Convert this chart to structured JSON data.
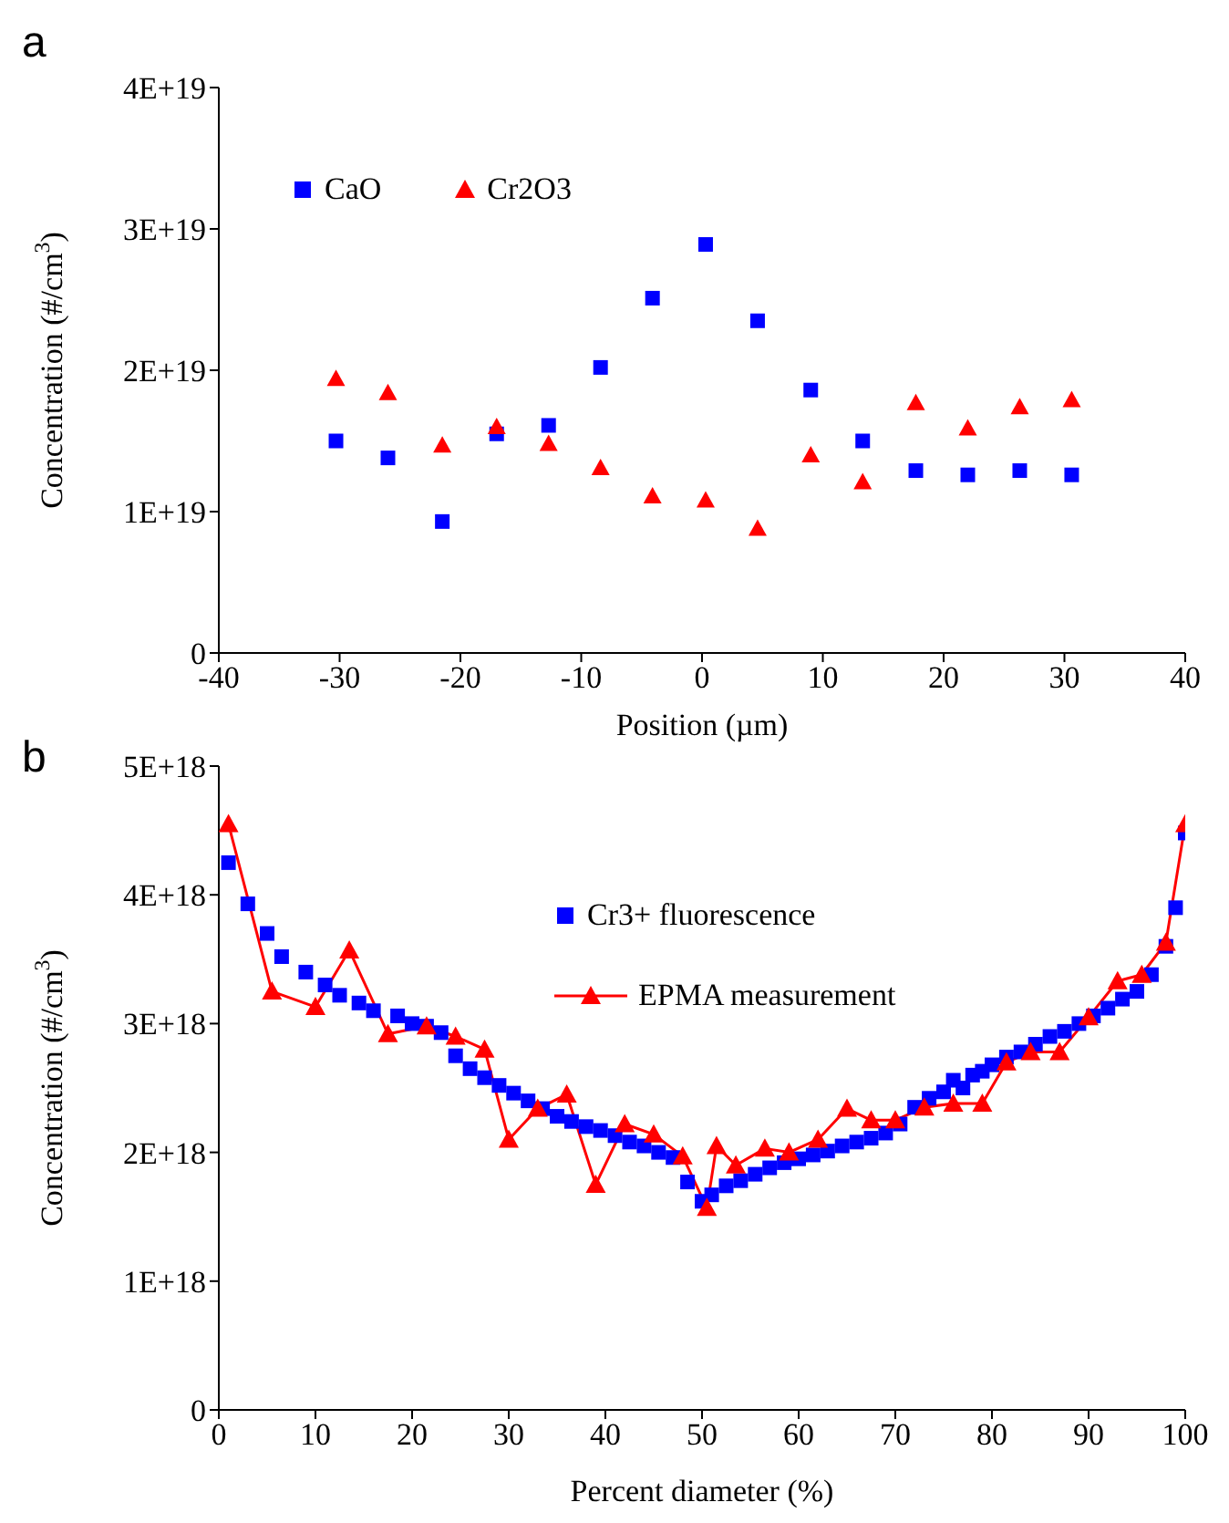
{
  "chart_data": [
    {
      "type": "scatter",
      "annotations": [
        "a"
      ],
      "xlabel": "Position (µm)",
      "ylabel": "Concentration (#/cm$^{3}$)",
      "xlim": [
        -40,
        40
      ],
      "xticks": [
        -40,
        -30,
        -20,
        -10,
        0,
        10,
        20,
        30,
        40
      ],
      "ylim": [
        0,
        4e+19
      ],
      "yticks": [
        0,
        {
          "value": 1e+19,
          "label": "1E+19"
        },
        {
          "value": 2e+19,
          "label": "2E+19"
        },
        {
          "value": 3e+19,
          "label": "3E+19"
        },
        {
          "value": 4e+19,
          "label": "4E+19"
        }
      ],
      "grid": false,
      "legend": "top left",
      "x": [
        -30.3,
        -26,
        -21.5,
        -17,
        -12.7,
        -8.4,
        -4.1,
        0.3,
        4.6,
        9,
        13.3,
        17.7,
        22,
        26.3,
        30.6
      ],
      "series": [
        {
          "name": "CaO",
          "color": "#0000ff",
          "marker": "square",
          "values": [
            1.5e+19,
            1.38e+19,
            9.3e+18,
            1.55e+19,
            1.61e+19,
            2.02e+19,
            2.51e+19,
            2.89e+19,
            2.35e+19,
            1.86e+19,
            1.5e+19,
            1.29e+19,
            1.26e+19,
            1.29e+19,
            1.26e+19
          ]
        },
        {
          "name": "Cr2O3",
          "color": "#ff0000",
          "marker": "triangle",
          "values": [
            1.94e+19,
            1.84e+19,
            1.47e+19,
            1.6e+19,
            1.48e+19,
            1.31e+19,
            1.11e+19,
            1.08e+19,
            8.8e+18,
            1.4e+19,
            1.21e+19,
            1.77e+19,
            1.59e+19,
            1.74e+19,
            1.79e+19
          ]
        }
      ]
    },
    {
      "type": "scatter",
      "annotations": [
        "b"
      ],
      "xlabel": "Percent diameter (%)",
      "ylabel": "Concentration (#/cm$^{3}$)",
      "xlim": [
        0,
        100
      ],
      "xticks": [
        0,
        10,
        20,
        30,
        40,
        50,
        60,
        70,
        80,
        90,
        100
      ],
      "ylim": [
        0,
        5e+18
      ],
      "yticks": [
        0,
        {
          "value": 1e+18,
          "label": "1E+18"
        },
        {
          "value": 2e+18,
          "label": "2E+18"
        },
        {
          "value": 3e+18,
          "label": "3E+18"
        },
        {
          "value": 4e+18,
          "label": "4E+18"
        },
        {
          "value": 5e+18,
          "label": "5E+18"
        }
      ],
      "grid": false,
      "legend": "top right",
      "series": [
        {
          "name": "Cr3+ fluorescence",
          "color": "#0000ff",
          "marker": "square",
          "x": [
            1,
            3,
            5,
            6.5,
            9,
            11,
            12.5,
            14.5,
            16,
            18.5,
            20,
            21.5,
            23,
            24.5,
            26,
            27.5,
            29,
            30.5,
            32,
            33.5,
            35,
            36.5,
            38,
            39.5,
            41,
            42.5,
            44,
            45.5,
            47,
            48.5,
            50,
            51,
            52.5,
            54,
            55.5,
            57,
            58.5,
            60,
            61.5,
            63,
            64.5,
            66,
            67.5,
            69,
            70.5,
            72,
            73.5,
            75,
            76,
            77,
            78,
            79,
            80,
            81.5,
            83,
            84.5,
            86,
            87.5,
            89,
            90.5,
            92,
            93.5,
            95,
            96.5,
            98,
            99,
            100
          ],
          "values": [
            4.25e+18,
            3.93e+18,
            3.7e+18,
            3.52e+18,
            3.4e+18,
            3.3e+18,
            3.22e+18,
            3.16e+18,
            3.1e+18,
            3.06e+18,
            3e+18,
            2.98e+18,
            2.93e+18,
            2.75e+18,
            2.65e+18,
            2.58e+18,
            2.52e+18,
            2.46e+18,
            2.4e+18,
            2.34e+18,
            2.28e+18,
            2.24e+18,
            2.2e+18,
            2.17e+18,
            2.13e+18,
            2.08e+18,
            2.05e+18,
            2e+18,
            1.96e+18,
            1.77e+18,
            1.62e+18,
            1.67e+18,
            1.74e+18,
            1.78e+18,
            1.83e+18,
            1.88e+18,
            1.92e+18,
            1.95e+18,
            1.98e+18,
            2.01e+18,
            2.05e+18,
            2.08e+18,
            2.11e+18,
            2.15e+18,
            2.22e+18,
            2.35e+18,
            2.42e+18,
            2.47e+18,
            2.56e+18,
            2.5e+18,
            2.6e+18,
            2.63e+18,
            2.68e+18,
            2.74e+18,
            2.78e+18,
            2.84e+18,
            2.9e+18,
            2.94e+18,
            3e+18,
            3.06e+18,
            3.12e+18,
            3.19e+18,
            3.25e+18,
            3.38e+18,
            3.6e+18,
            3.9e+18,
            4.48e+18
          ]
        },
        {
          "name": "EPMA measurement",
          "type": "line",
          "color": "#ff0000",
          "marker": "triangle",
          "line_style": "solid",
          "x": [
            1,
            5.5,
            10,
            13.5,
            17.5,
            21.5,
            24.5,
            27.5,
            30,
            33,
            36,
            39,
            42,
            45,
            48,
            50.5,
            51.5,
            53.5,
            56.5,
            59,
            62,
            65,
            67.5,
            70,
            73,
            76,
            79,
            81.5,
            84,
            87,
            90,
            93,
            95.5,
            98,
            100
          ],
          "values": [
            4.55e+18,
            3.25e+18,
            3.13e+18,
            3.57e+18,
            2.92e+18,
            2.98e+18,
            2.9e+18,
            2.8e+18,
            2.1e+18,
            2.34e+18,
            2.45e+18,
            1.75e+18,
            2.22e+18,
            2.14e+18,
            1.97e+18,
            1.57e+18,
            2.05e+18,
            1.9e+18,
            2.03e+18,
            2e+18,
            2.1e+18,
            2.34e+18,
            2.25e+18,
            2.25e+18,
            2.35e+18,
            2.38e+18,
            2.38e+18,
            2.7e+18,
            2.78e+18,
            2.78e+18,
            3.05e+18,
            3.33e+18,
            3.38e+18,
            3.63e+18,
            4.55e+18
          ]
        }
      ]
    }
  ]
}
